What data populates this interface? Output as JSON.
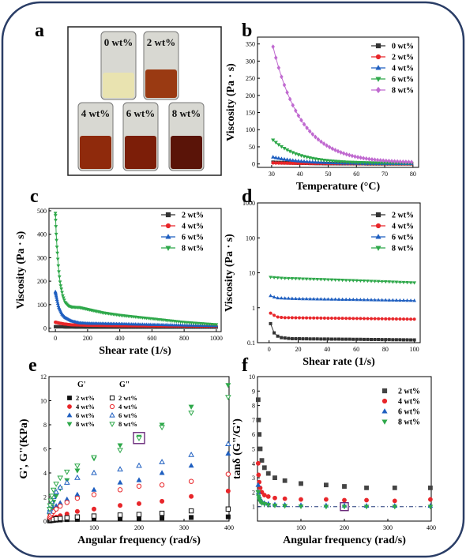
{
  "panels": {
    "a": {
      "letter": "a",
      "vials": [
        "0 wt%",
        "2 wt%",
        "4 wt%",
        "6 wt%",
        "8 wt%"
      ],
      "vial_colors": [
        "#e9e3b0",
        "#9a3a12",
        "#8f2a0c",
        "#7c1e08",
        "#5a1408"
      ]
    },
    "b": {
      "letter": "b"
    },
    "c": {
      "letter": "c"
    },
    "d": {
      "letter": "d"
    },
    "e": {
      "letter": "e"
    },
    "f": {
      "letter": "f"
    }
  },
  "chart_data": [
    {
      "id": "b",
      "type": "line",
      "xlabel": "Temperature (°C)",
      "ylabel": "Viscosity (Pa · s)",
      "xlim": [
        25,
        82
      ],
      "ylim": [
        -10,
        370
      ],
      "xticks": [
        30,
        40,
        50,
        60,
        70,
        80
      ],
      "yticks": [
        0,
        50,
        100,
        150,
        200,
        250,
        300,
        350
      ],
      "legend_position": "top-right",
      "series": [
        {
          "name": "0 wt%",
          "color": "#333333",
          "marker": "square",
          "x0": 30.5,
          "y0": 5,
          "tau": 10,
          "floor": 0.5
        },
        {
          "name": "2 wt%",
          "color": "#e8262a",
          "marker": "circle",
          "x0": 30.5,
          "y0": 3,
          "tau": 15,
          "floor": 0.5
        },
        {
          "name": "4 wt%",
          "color": "#1f5fc0",
          "marker": "triangle",
          "x0": 30.5,
          "y0": 20,
          "tau": 10,
          "floor": 1
        },
        {
          "name": "6 wt%",
          "color": "#2ea84a",
          "marker": "triangle-down",
          "x0": 30.5,
          "y0": 70,
          "tau": 9,
          "floor": 2
        },
        {
          "name": "8 wt%",
          "color": "#c06ad0",
          "marker": "diamond",
          "x0": 30.5,
          "y0": 342,
          "tau": 10,
          "floor": 3
        }
      ]
    },
    {
      "id": "c",
      "type": "line",
      "xlabel": "Shear rate (1/s)",
      "ylabel": "Viscosity (Pa · s)",
      "xlim": [
        -40,
        1030
      ],
      "ylim": [
        -15,
        510
      ],
      "xticks": [
        0,
        200,
        400,
        600,
        800,
        1000
      ],
      "yticks": [
        0,
        100,
        200,
        300,
        400,
        500
      ],
      "legend_position": "top-right",
      "series": [
        {
          "name": "2 wt%",
          "color": "#333333",
          "marker": "square",
          "points": [
            [
              0,
              6
            ],
            [
              50,
              5
            ],
            [
              200,
              4
            ],
            [
              500,
              4
            ],
            [
              1000,
              4
            ]
          ]
        },
        {
          "name": "4 wt%",
          "color": "#e8262a",
          "marker": "circle",
          "points": [
            [
              0,
              25
            ],
            [
              20,
              22
            ],
            [
              50,
              18
            ],
            [
              100,
              14
            ],
            [
              200,
              12
            ],
            [
              400,
              10
            ],
            [
              600,
              9
            ],
            [
              1000,
              8
            ]
          ]
        },
        {
          "name": "6 wt%",
          "color": "#1f5fc0",
          "marker": "triangle",
          "points": [
            [
              0,
              155
            ],
            [
              10,
              120
            ],
            [
              20,
              90
            ],
            [
              40,
              60
            ],
            [
              60,
              45
            ],
            [
              100,
              30
            ],
            [
              150,
              22
            ],
            [
              200,
              20
            ],
            [
              400,
              18
            ],
            [
              600,
              15
            ],
            [
              800,
              12
            ],
            [
              1000,
              10
            ]
          ]
        },
        {
          "name": "8 wt%",
          "color": "#2ea84a",
          "marker": "triangle-down",
          "points": [
            [
              0,
              490
            ],
            [
              5,
              400
            ],
            [
              10,
              340
            ],
            [
              20,
              250
            ],
            [
              30,
              190
            ],
            [
              45,
              140
            ],
            [
              60,
              110
            ],
            [
              80,
              95
            ],
            [
              100,
              90
            ],
            [
              150,
              88
            ],
            [
              200,
              80
            ],
            [
              300,
              65
            ],
            [
              400,
              55
            ],
            [
              600,
              40
            ],
            [
              800,
              25
            ],
            [
              1000,
              15
            ]
          ]
        }
      ]
    },
    {
      "id": "d",
      "type": "line",
      "log_y": true,
      "xlabel": "Shear rate (1/s)",
      "ylabel": "Viscosity (Pa · s)",
      "xlim": [
        -8,
        104
      ],
      "ylim": [
        0.1,
        1000
      ],
      "xticks": [
        0,
        20,
        40,
        60,
        80,
        100
      ],
      "yticks": [
        0.1,
        1,
        10,
        100,
        1000
      ],
      "ytick_labels": [
        "0.1",
        "1",
        "10",
        "100",
        "1000"
      ],
      "legend_position": "top-right",
      "series": [
        {
          "name": "2 wt%",
          "color": "#333333",
          "marker": "square",
          "points": [
            [
              1,
              0.35
            ],
            [
              3,
              0.2
            ],
            [
              5,
              0.16
            ],
            [
              8,
              0.14
            ],
            [
              15,
              0.13
            ],
            [
              100,
              0.12
            ]
          ]
        },
        {
          "name": "4 wt%",
          "color": "#e8262a",
          "marker": "circle",
          "points": [
            [
              1,
              0.7
            ],
            [
              5,
              0.55
            ],
            [
              10,
              0.52
            ],
            [
              100,
              0.47
            ]
          ]
        },
        {
          "name": "6 wt%",
          "color": "#1f5fc0",
          "marker": "triangle",
          "points": [
            [
              1,
              2.2
            ],
            [
              5,
              1.9
            ],
            [
              20,
              1.8
            ],
            [
              100,
              1.6
            ]
          ]
        },
        {
          "name": "8 wt%",
          "color": "#2ea84a",
          "marker": "triangle-down",
          "points": [
            [
              1,
              7.5
            ],
            [
              10,
              7
            ],
            [
              50,
              6.2
            ],
            [
              100,
              5.2
            ]
          ]
        }
      ]
    },
    {
      "id": "e",
      "type": "scatter",
      "xlabel": "Angular frequency (rad/s)",
      "ylabel": "G', G\"(KPa)",
      "xlim": [
        0,
        400
      ],
      "ylim": [
        0,
        12
      ],
      "xticks": [
        100,
        200,
        300,
        400
      ],
      "yticks": [
        0,
        2,
        4,
        6,
        8,
        10,
        12
      ],
      "legend_position": "top-left",
      "legend_headers": [
        "G'",
        "G\""
      ],
      "x": [
        1.6,
        2.5,
        4,
        6.3,
        10,
        16,
        25,
        40,
        63,
        100,
        158,
        200,
        251,
        316,
        398
      ],
      "series": [
        {
          "name": "2 wt%",
          "color": "#111111",
          "marker": "square",
          "filled": true,
          "values": [
            0.02,
            0.03,
            0.04,
            0.05,
            0.06,
            0.08,
            0.1,
            0.12,
            0.14,
            0.17,
            0.2,
            0.22,
            0.25,
            0.3,
            0.35
          ]
        },
        {
          "name": "4 wt%",
          "color": "#e8262a",
          "marker": "circle",
          "filled": true,
          "values": [
            0.1,
            0.13,
            0.16,
            0.2,
            0.26,
            0.34,
            0.45,
            0.6,
            0.8,
            1.0,
            1.3,
            1.45,
            1.65,
            2.05,
            2.5
          ]
        },
        {
          "name": "6 wt%",
          "color": "#1f5fc0",
          "marker": "triangle",
          "filled": true,
          "values": [
            0.4,
            0.5,
            0.6,
            0.8,
            1.0,
            1.25,
            1.5,
            1.8,
            2.2,
            2.6,
            3.2,
            3.4,
            4.0,
            4.6,
            5.6
          ]
        },
        {
          "name": "8 wt%",
          "color": "#2ea84a",
          "marker": "triangle-down",
          "filled": true,
          "values": [
            0.5,
            0.7,
            0.9,
            1.2,
            1.6,
            2.1,
            2.7,
            3.4,
            4.2,
            5.2,
            6.3,
            7.0,
            8.0,
            9.5,
            11.3
          ]
        },
        {
          "name": "2 wt%",
          "color": "#111111",
          "marker": "square",
          "filled": false,
          "values": [
            0.05,
            0.07,
            0.09,
            0.11,
            0.14,
            0.18,
            0.22,
            0.28,
            0.35,
            0.42,
            0.5,
            0.55,
            0.65,
            0.85,
            1.0
          ]
        },
        {
          "name": "4 wt%",
          "color": "#e8262a",
          "marker": "circle",
          "filled": false,
          "values": [
            0.3,
            0.4,
            0.5,
            0.65,
            0.8,
            1.0,
            1.25,
            1.55,
            1.9,
            2.2,
            2.6,
            2.9,
            3.0,
            3.3,
            3.9
          ]
        },
        {
          "name": "6 wt%",
          "color": "#1f5fc0",
          "marker": "triangle",
          "filled": false,
          "values": [
            0.8,
            1.0,
            1.3,
            1.6,
            2.0,
            2.4,
            2.8,
            3.2,
            3.6,
            4.0,
            4.3,
            4.6,
            4.9,
            5.5,
            6.4
          ]
        },
        {
          "name": "8 wt%",
          "color": "#2ea84a",
          "marker": "triangle-down",
          "filled": false,
          "values": [
            1.0,
            1.3,
            1.7,
            2.1,
            2.6,
            3.1,
            3.6,
            4.1,
            4.6,
            5.3,
            5.9,
            6.9,
            7.8,
            9.0,
            10.3
          ]
        }
      ],
      "highlight": {
        "x": 200,
        "y": 6.9
      }
    },
    {
      "id": "f",
      "type": "scatter",
      "xlabel": "Angular frequency (rad/s)",
      "ylabel": "tanδ (G\"/G')",
      "xlim": [
        0,
        400
      ],
      "ylim": [
        0,
        10
      ],
      "xticks": [
        100,
        200,
        300,
        400
      ],
      "yticks": [
        1,
        2,
        3,
        4,
        5,
        6,
        7,
        8,
        9,
        10
      ],
      "legend_position": "top-right",
      "reference_line": 1,
      "x": [
        1.6,
        2.5,
        4,
        6.3,
        10,
        16,
        25,
        40,
        63,
        100,
        158,
        200,
        251,
        316,
        398
      ],
      "series": [
        {
          "name": "2 wt%",
          "color": "#444444",
          "marker": "square",
          "values": [
            8.4,
            7.0,
            6.0,
            5.0,
            4.2,
            3.7,
            3.3,
            3.0,
            2.8,
            2.6,
            2.5,
            2.4,
            2.3,
            2.3,
            2.3
          ]
        },
        {
          "name": "4 wt%",
          "color": "#e8262a",
          "marker": "circle",
          "values": [
            4.0,
            3.2,
            2.7,
            2.3,
            2.0,
            1.8,
            1.7,
            1.6,
            1.55,
            1.5,
            1.5,
            1.45,
            1.45,
            1.4,
            1.5
          ]
        },
        {
          "name": "6 wt%",
          "color": "#1f5fc0",
          "marker": "triangle",
          "values": [
            2.5,
            2.0,
            1.7,
            1.5,
            1.35,
            1.25,
            1.2,
            1.15,
            1.12,
            1.1,
            1.08,
            1.07,
            1.06,
            1.06,
            1.05
          ]
        },
        {
          "name": "8 wt%",
          "color": "#2ea84a",
          "marker": "triangle-down",
          "values": [
            2.0,
            1.7,
            1.5,
            1.35,
            1.25,
            1.18,
            1.12,
            1.08,
            1.05,
            1.02,
            1.0,
            1.0,
            1.0,
            1.0,
            1.0
          ]
        }
      ],
      "highlight": {
        "x": 200,
        "y": 1.0
      }
    }
  ]
}
